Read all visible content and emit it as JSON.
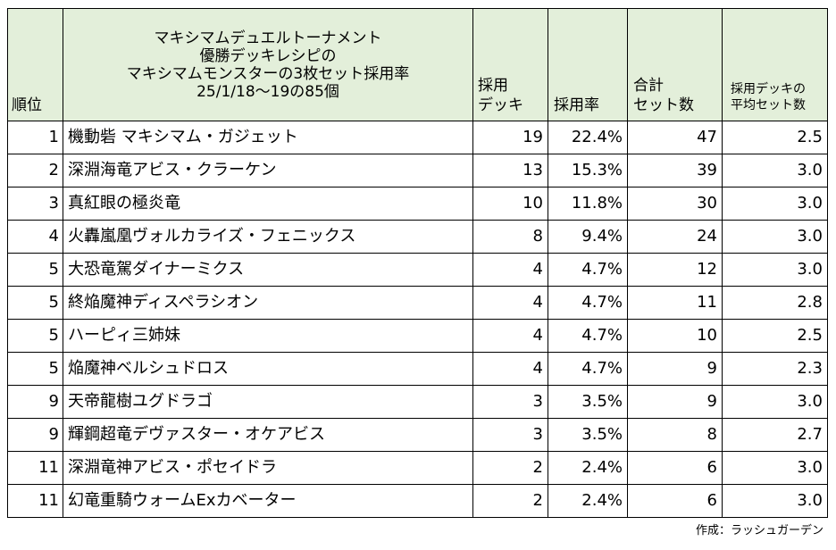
{
  "table": {
    "header": {
      "rank": "順位",
      "title_lines": [
        "マキシマムデュエルトーナメント",
        "優勝デッキレシピの",
        "マキシマムモンスターの3枚セット採用率",
        "25/1/18～19の85個"
      ],
      "decks_lines": [
        "採用",
        "デッキ"
      ],
      "rate": "採用率",
      "total_lines": [
        "合計",
        "セット数"
      ],
      "avg_lines": [
        "採用デッキの",
        "平均セット数"
      ]
    },
    "rows": [
      {
        "rank": "1",
        "name": "機動砦 マキシマム・ガジェット",
        "decks": "19",
        "rate": "22.4%",
        "total": "47",
        "avg": "2.5"
      },
      {
        "rank": "2",
        "name": "深淵海竜アビス・クラーケン",
        "decks": "13",
        "rate": "15.3%",
        "total": "39",
        "avg": "3.0"
      },
      {
        "rank": "3",
        "name": "真紅眼の極炎竜",
        "decks": "10",
        "rate": "11.8%",
        "total": "30",
        "avg": "3.0"
      },
      {
        "rank": "4",
        "name": "火轟嵐凰ヴォルカライズ・フェニックス",
        "decks": "8",
        "rate": "9.4%",
        "total": "24",
        "avg": "3.0"
      },
      {
        "rank": "5",
        "name": "大恐竜駕ダイナーミクス",
        "decks": "4",
        "rate": "4.7%",
        "total": "12",
        "avg": "3.0"
      },
      {
        "rank": "5",
        "name": "終焔魔神ディスペラシオン",
        "decks": "4",
        "rate": "4.7%",
        "total": "11",
        "avg": "2.8"
      },
      {
        "rank": "5",
        "name": "ハーピィ三姉妹",
        "decks": "4",
        "rate": "4.7%",
        "total": "10",
        "avg": "2.5"
      },
      {
        "rank": "5",
        "name": "焔魔神ベルシュドロス",
        "decks": "4",
        "rate": "4.7%",
        "total": "9",
        "avg": "2.3"
      },
      {
        "rank": "9",
        "name": "天帝龍樹ユグドラゴ",
        "decks": "3",
        "rate": "3.5%",
        "total": "9",
        "avg": "3.0"
      },
      {
        "rank": "9",
        "name": "輝鋼超竜デヴァスター・オケアビス",
        "decks": "3",
        "rate": "3.5%",
        "total": "8",
        "avg": "2.7"
      },
      {
        "rank": "11",
        "name": "深淵竜神アビス・ポセイドラ",
        "decks": "2",
        "rate": "2.4%",
        "total": "6",
        "avg": "3.0"
      },
      {
        "rank": "11",
        "name": "幻竜重騎ウォームExカベーター",
        "decks": "2",
        "rate": "2.4%",
        "total": "6",
        "avg": "3.0"
      }
    ]
  },
  "footer": "作成：ラッシュガーデン",
  "colors": {
    "header_bg": "#e3efda",
    "border": "#000000",
    "text": "#000000",
    "page_bg": "#ffffff"
  }
}
